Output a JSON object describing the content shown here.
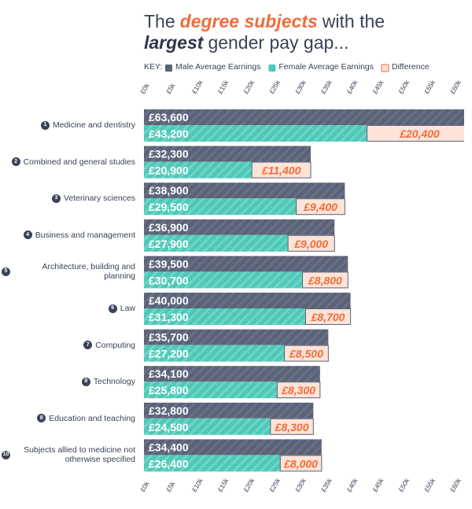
{
  "chart_data": {
    "type": "bar",
    "title": {
      "line1": [
        "The",
        "degree subjects",
        "with the"
      ],
      "line2": [
        "largest",
        "gender pay gap..."
      ]
    },
    "legend_label": "KEY:",
    "ranks": [
      "1",
      "2",
      "3",
      "4",
      "5",
      "6",
      "7",
      "8",
      "8",
      "10"
    ],
    "categories": [
      "Medicine and dentistry",
      "Combined and general studies",
      "Veterinary sciences",
      "Business and management",
      "Architecture, building and planning",
      "Law",
      "Computing",
      "Technology",
      "Education and teaching",
      "Subjects allied to medicine not otherwise specified"
    ],
    "series": [
      {
        "name": "Male Average Earnings",
        "color": "#5b6276",
        "values": [
          63600,
          32300,
          38900,
          36900,
          39500,
          40000,
          35700,
          34100,
          32800,
          34400
        ],
        "value_labels": [
          "£63,600",
          "£32,300",
          "£38,900",
          "£36,900",
          "£39,500",
          "£40,000",
          "£35,700",
          "£34,100",
          "£32,800",
          "£34,400"
        ]
      },
      {
        "name": "Female Average Earnings",
        "color": "#4ec8b7",
        "values": [
          43200,
          20900,
          29500,
          27900,
          30700,
          31300,
          27200,
          25800,
          24500,
          26400
        ],
        "value_labels": [
          "£43,200",
          "£20,900",
          "£29,500",
          "£27,900",
          "£30,700",
          "£31,300",
          "£27,200",
          "£25,800",
          "£24,500",
          "£26,400"
        ]
      },
      {
        "name": "Difference",
        "color": "#fde3d8",
        "values": [
          20400,
          11400,
          9400,
          9000,
          8800,
          8700,
          8500,
          8300,
          8300,
          8000
        ],
        "value_labels": [
          "£20,400",
          "£11,400",
          "£9,400",
          "£9,000",
          "£8,800",
          "£8,700",
          "£8,500",
          "£8,300",
          "£8,300",
          "£8,000"
        ]
      }
    ],
    "xlim": [
      0,
      62000
    ],
    "xticks": [
      {
        "value": 0,
        "label": "£0k"
      },
      {
        "value": 5000,
        "label": "£5k"
      },
      {
        "value": 10000,
        "label": "£10k"
      },
      {
        "value": 15000,
        "label": "£15k"
      },
      {
        "value": 20000,
        "label": "£20k"
      },
      {
        "value": 25000,
        "label": "£25k"
      },
      {
        "value": 30000,
        "label": "£30k"
      },
      {
        "value": 35000,
        "label": "£35k"
      },
      {
        "value": 40000,
        "label": "£40k"
      },
      {
        "value": 45000,
        "label": "£45k"
      },
      {
        "value": 50000,
        "label": "£50k"
      },
      {
        "value": 55000,
        "label": "£55k"
      },
      {
        "value": 60000,
        "label": "£60k"
      }
    ]
  }
}
